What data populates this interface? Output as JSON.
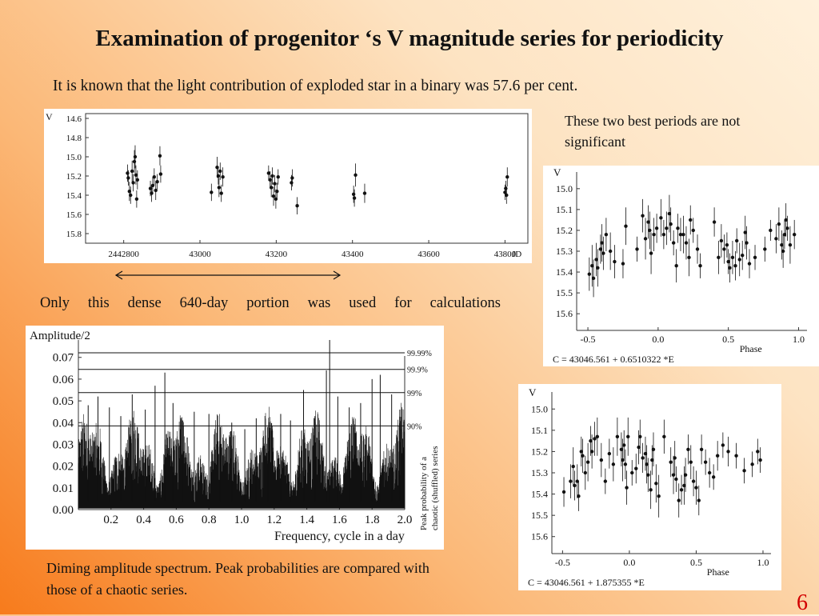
{
  "slide": {
    "title": "Examination of progenitor ‘s V magnitude series for periodicity",
    "subtitle": "It is known that the light contribution of exploded star in a binary was 57.6 per cent.",
    "note": "These two best periods are not significant",
    "dense_note": "Only this dense 640-day portion was used for calculations",
    "caption": "Diming amplitude spectrum. Peak probabilities are compared with those of a chaotic series.",
    "page_number": "6"
  },
  "chart_data": [
    {
      "id": "lightcurve",
      "type": "scatter",
      "title": "",
      "ylabel": "V",
      "xlabel": "JD",
      "xlim": [
        2442700,
        43860
      ],
      "ylim": [
        15.9,
        14.55
      ],
      "x_ticks": [
        2442800,
        43000,
        43200,
        43400,
        43600,
        43800
      ],
      "x_tick_labels": [
        "2442800",
        "43000",
        "43200",
        "43400",
        "43600",
        "43800"
      ],
      "y_ticks": [
        14.6,
        14.8,
        15.0,
        15.2,
        15.4,
        15.6,
        15.8
      ],
      "y_tick_labels": [
        "14.6",
        "14.8",
        "15.0",
        "15.2",
        "15.4",
        "15.6",
        "15.8"
      ],
      "points": [
        [
          2442810,
          15.17,
          0.09
        ],
        [
          2442812,
          15.22,
          0.08
        ],
        [
          2442815,
          15.36,
          0.1
        ],
        [
          2442818,
          15.4,
          0.09
        ],
        [
          2442822,
          15.15,
          0.11
        ],
        [
          2442825,
          15.27,
          0.09
        ],
        [
          2442828,
          15.05,
          0.12
        ],
        [
          2442830,
          15.0,
          0.12
        ],
        [
          2442832,
          15.19,
          0.1
        ],
        [
          2442834,
          15.44,
          0.09
        ],
        [
          2442836,
          15.24,
          0.1
        ],
        [
          2442870,
          15.33,
          0.08
        ],
        [
          2442873,
          15.38,
          0.09
        ],
        [
          2442876,
          15.3,
          0.09
        ],
        [
          2442880,
          15.21,
          0.09
        ],
        [
          2442884,
          15.35,
          0.1
        ],
        [
          2442888,
          15.26,
          0.08
        ],
        [
          2442895,
          14.99,
          0.1
        ],
        [
          2442897,
          15.18,
          0.09
        ],
        [
          43030,
          15.37,
          0.09
        ],
        [
          43045,
          15.11,
          0.11
        ],
        [
          43048,
          15.2,
          0.09
        ],
        [
          43050,
          15.32,
          0.1
        ],
        [
          43053,
          15.15,
          0.09
        ],
        [
          43056,
          15.38,
          0.09
        ],
        [
          43060,
          15.21,
          0.1
        ],
        [
          43180,
          15.17,
          0.08
        ],
        [
          43184,
          15.24,
          0.09
        ],
        [
          43187,
          15.32,
          0.1
        ],
        [
          43190,
          15.2,
          0.09
        ],
        [
          43193,
          15.41,
          0.1
        ],
        [
          43196,
          15.28,
          0.09
        ],
        [
          43199,
          15.44,
          0.1
        ],
        [
          43202,
          15.36,
          0.09
        ],
        [
          43205,
          15.21,
          0.08
        ],
        [
          43240,
          15.27,
          0.08
        ],
        [
          43242,
          15.22,
          0.09
        ],
        [
          43255,
          15.51,
          0.09
        ],
        [
          43403,
          15.39,
          0.09
        ],
        [
          43405,
          15.43,
          0.09
        ],
        [
          43408,
          15.19,
          0.12
        ],
        [
          43432,
          15.38,
          0.1
        ],
        [
          43800,
          15.37,
          0.08
        ],
        [
          43802,
          15.33,
          0.08
        ],
        [
          43804,
          15.4,
          0.09
        ],
        [
          43806,
          15.21,
          0.1
        ]
      ]
    },
    {
      "id": "fold1",
      "type": "scatter",
      "ylabel": "V",
      "xlabel": "Phase",
      "formula": "C = 43046.561 + 0.6510322 *E",
      "xlim": [
        -0.58,
        1.06
      ],
      "ylim": [
        15.68,
        14.92
      ],
      "x_ticks": [
        -0.5,
        0.0,
        0.5,
        1.0
      ],
      "x_tick_labels": [
        "-0.5",
        "0.0",
        "0.5",
        "1.0"
      ],
      "y_ticks": [
        15.0,
        15.1,
        15.2,
        15.3,
        15.4,
        15.5,
        15.6
      ],
      "y_tick_labels": [
        "15.0",
        "15.1",
        "15.2",
        "15.3",
        "15.4",
        "15.5",
        "15.6"
      ],
      "points": [
        [
          -0.49,
          15.41,
          0.08
        ],
        [
          -0.47,
          15.37,
          0.1
        ],
        [
          -0.46,
          15.43,
          0.09
        ],
        [
          -0.44,
          15.34,
          0.08
        ],
        [
          -0.43,
          15.38,
          0.09
        ],
        [
          -0.41,
          15.29,
          0.07
        ],
        [
          -0.4,
          15.26,
          0.09
        ],
        [
          -0.39,
          15.31,
          0.08
        ],
        [
          -0.37,
          15.22,
          0.08
        ],
        [
          -0.34,
          15.3,
          0.09
        ],
        [
          -0.31,
          15.35,
          0.08
        ],
        [
          -0.25,
          15.36,
          0.07
        ],
        [
          -0.23,
          15.18,
          0.09
        ],
        [
          -0.15,
          15.29,
          0.06
        ],
        [
          -0.11,
          15.13,
          0.08
        ],
        [
          -0.09,
          15.24,
          0.1
        ],
        [
          -0.07,
          15.16,
          0.08
        ],
        [
          -0.06,
          15.2,
          0.09
        ],
        [
          -0.05,
          15.31,
          0.1
        ],
        [
          -0.03,
          15.22,
          0.08
        ],
        [
          -0.01,
          15.19,
          0.07
        ],
        [
          0.02,
          15.14,
          0.09
        ],
        [
          0.04,
          15.22,
          0.07
        ],
        [
          0.06,
          15.19,
          0.08
        ],
        [
          0.08,
          15.12,
          0.09
        ],
        [
          0.09,
          15.17,
          0.08
        ],
        [
          0.11,
          15.26,
          0.06
        ],
        [
          0.13,
          15.37,
          0.08
        ],
        [
          0.14,
          15.19,
          0.07
        ],
        [
          0.16,
          15.22,
          0.08
        ],
        [
          0.18,
          15.22,
          0.09
        ],
        [
          0.2,
          15.26,
          0.08
        ],
        [
          0.22,
          15.33,
          0.09
        ],
        [
          0.23,
          15.15,
          0.07
        ],
        [
          0.25,
          15.2,
          0.06
        ],
        [
          0.28,
          15.29,
          0.07
        ],
        [
          0.3,
          15.37,
          0.06
        ],
        [
          0.4,
          15.16,
          0.07
        ],
        [
          0.43,
          15.33,
          0.08
        ],
        [
          0.45,
          15.25,
          0.08
        ],
        [
          0.47,
          15.29,
          0.07
        ],
        [
          0.49,
          15.27,
          0.06
        ],
        [
          0.5,
          15.35,
          0.06
        ],
        [
          0.51,
          15.38,
          0.07
        ],
        [
          0.53,
          15.33,
          0.08
        ],
        [
          0.55,
          15.37,
          0.07
        ],
        [
          0.56,
          15.25,
          0.06
        ],
        [
          0.58,
          15.34,
          0.08
        ],
        [
          0.6,
          15.32,
          0.07
        ],
        [
          0.62,
          15.21,
          0.08
        ],
        [
          0.63,
          15.26,
          0.08
        ],
        [
          0.65,
          15.36,
          0.07
        ],
        [
          0.69,
          15.33,
          0.06
        ],
        [
          0.76,
          15.29,
          0.06
        ],
        [
          0.8,
          15.2,
          0.05
        ],
        [
          0.84,
          15.24,
          0.07
        ],
        [
          0.86,
          15.17,
          0.08
        ],
        [
          0.88,
          15.27,
          0.07
        ],
        [
          0.89,
          15.3,
          0.08
        ],
        [
          0.9,
          15.22,
          0.07
        ],
        [
          0.91,
          15.15,
          0.08
        ],
        [
          0.92,
          15.19,
          0.06
        ],
        [
          0.94,
          15.27,
          0.09
        ],
        [
          0.97,
          15.22,
          0.07
        ]
      ]
    },
    {
      "id": "fold2",
      "type": "scatter",
      "ylabel": "V",
      "xlabel": "Phase",
      "formula": "C = 43046.561 + 1.875355 *E",
      "xlim": [
        -0.58,
        1.06
      ],
      "ylim": [
        15.68,
        14.92
      ],
      "x_ticks": [
        -0.5,
        0.0,
        0.5,
        1.0
      ],
      "x_tick_labels": [
        "-0.5",
        "0.0",
        "0.5",
        "1.0"
      ],
      "y_ticks": [
        15.0,
        15.1,
        15.2,
        15.3,
        15.4,
        15.5,
        15.6
      ],
      "y_tick_labels": [
        "15.0",
        "15.1",
        "15.2",
        "15.3",
        "15.4",
        "15.5",
        "15.6"
      ],
      "points": [
        [
          -0.49,
          15.39,
          0.07
        ],
        [
          -0.44,
          15.34,
          0.08
        ],
        [
          -0.42,
          15.27,
          0.09
        ],
        [
          -0.41,
          15.36,
          0.07
        ],
        [
          -0.39,
          15.34,
          0.08
        ],
        [
          -0.38,
          15.41,
          0.07
        ],
        [
          -0.36,
          15.2,
          0.07
        ],
        [
          -0.35,
          15.22,
          0.08
        ],
        [
          -0.33,
          15.3,
          0.08
        ],
        [
          -0.31,
          15.25,
          0.09
        ],
        [
          -0.29,
          15.15,
          0.07
        ],
        [
          -0.28,
          15.2,
          0.08
        ],
        [
          -0.26,
          15.14,
          0.08
        ],
        [
          -0.24,
          15.13,
          0.09
        ],
        [
          -0.21,
          15.24,
          0.08
        ],
        [
          -0.18,
          15.34,
          0.06
        ],
        [
          -0.15,
          15.21,
          0.07
        ],
        [
          -0.12,
          15.26,
          0.08
        ],
        [
          -0.09,
          15.13,
          0.09
        ],
        [
          -0.06,
          15.19,
          0.08
        ],
        [
          -0.05,
          15.24,
          0.1
        ],
        [
          -0.04,
          15.17,
          0.07
        ],
        [
          -0.03,
          15.26,
          0.07
        ],
        [
          -0.02,
          15.37,
          0.08
        ],
        [
          -0.01,
          15.13,
          0.09
        ],
        [
          0.02,
          15.3,
          0.06
        ],
        [
          0.05,
          15.28,
          0.07
        ],
        [
          0.07,
          15.18,
          0.08
        ],
        [
          0.08,
          15.13,
          0.08
        ],
        [
          0.1,
          15.23,
          0.07
        ],
        [
          0.12,
          15.21,
          0.08
        ],
        [
          0.13,
          15.26,
          0.09
        ],
        [
          0.14,
          15.31,
          0.08
        ],
        [
          0.16,
          15.38,
          0.09
        ],
        [
          0.17,
          15.24,
          0.07
        ],
        [
          0.18,
          15.19,
          0.08
        ],
        [
          0.2,
          15.35,
          0.09
        ],
        [
          0.22,
          15.41,
          0.1
        ],
        [
          0.26,
          15.13,
          0.08
        ],
        [
          0.31,
          15.25,
          0.07
        ],
        [
          0.33,
          15.31,
          0.09
        ],
        [
          0.34,
          15.23,
          0.08
        ],
        [
          0.35,
          15.33,
          0.06
        ],
        [
          0.37,
          15.43,
          0.08
        ],
        [
          0.39,
          15.38,
          0.07
        ],
        [
          0.41,
          15.36,
          0.09
        ],
        [
          0.42,
          15.31,
          0.08
        ],
        [
          0.44,
          15.19,
          0.07
        ],
        [
          0.46,
          15.25,
          0.08
        ],
        [
          0.48,
          15.34,
          0.07
        ],
        [
          0.5,
          15.37,
          0.08
        ],
        [
          0.52,
          15.43,
          0.07
        ],
        [
          0.54,
          15.19,
          0.07
        ],
        [
          0.57,
          15.25,
          0.06
        ],
        [
          0.6,
          15.3,
          0.07
        ],
        [
          0.63,
          15.32,
          0.06
        ],
        [
          0.66,
          15.22,
          0.07
        ],
        [
          0.7,
          15.17,
          0.06
        ],
        [
          0.74,
          15.2,
          0.07
        ],
        [
          0.8,
          15.22,
          0.06
        ],
        [
          0.86,
          15.29,
          0.06
        ],
        [
          0.92,
          15.26,
          0.06
        ],
        [
          0.96,
          15.2,
          0.06
        ],
        [
          0.98,
          15.24,
          0.06
        ]
      ]
    },
    {
      "id": "spectrum",
      "type": "line",
      "ylabel": "Amplitude/2",
      "xlabel": "Frequency, cycle in a day",
      "right_label_line1": "Peak probability of a",
      "right_label_line2": "chaotic (shuffled) series",
      "xlim": [
        0.0,
        2.0
      ],
      "ylim": [
        0.0,
        0.078
      ],
      "x_ticks": [
        0.2,
        0.4,
        0.6,
        0.8,
        1.0,
        1.2,
        1.4,
        1.6,
        1.8,
        2.0
      ],
      "x_tick_labels": [
        "0.2",
        "0.4",
        "0.6",
        "0.8",
        "1.0",
        "1.2",
        "1.4",
        "1.6",
        "1.8",
        "2.0"
      ],
      "y_ticks": [
        0.0,
        0.01,
        0.02,
        0.03,
        0.04,
        0.05,
        0.06,
        0.07
      ],
      "y_tick_labels": [
        "0.00",
        "0.01",
        "0.02",
        "0.03",
        "0.04",
        "0.05",
        "0.06",
        "0.07"
      ],
      "levels": [
        {
          "value": 0.0721,
          "label": "99.99%"
        },
        {
          "value": 0.0645,
          "label": "99.9%"
        },
        {
          "value": 0.0538,
          "label": "99%"
        },
        {
          "value": 0.0385,
          "label": "90%"
        }
      ],
      "peaks": [
        [
          0.06,
          0.048
        ],
        [
          0.12,
          0.052
        ],
        [
          0.19,
          0.047
        ],
        [
          0.26,
          0.043
        ],
        [
          0.33,
          0.053
        ],
        [
          0.41,
          0.046
        ],
        [
          0.47,
          0.057
        ],
        [
          0.53,
          0.063
        ],
        [
          0.58,
          0.049
        ],
        [
          0.64,
          0.041
        ],
        [
          0.71,
          0.045
        ],
        [
          0.8,
          0.044
        ],
        [
          0.87,
          0.038
        ],
        [
          0.94,
          0.04
        ],
        [
          1.02,
          0.037
        ],
        [
          1.09,
          0.042
        ],
        [
          1.16,
          0.038
        ],
        [
          1.24,
          0.044
        ],
        [
          1.3,
          0.041
        ],
        [
          1.38,
          0.055
        ],
        [
          1.45,
          0.043
        ],
        [
          1.52,
          0.064
        ],
        [
          1.54,
          0.078
        ],
        [
          1.59,
          0.052
        ],
        [
          1.66,
          0.047
        ],
        [
          1.73,
          0.049
        ],
        [
          1.8,
          0.06
        ],
        [
          1.85,
          0.062
        ],
        [
          1.92,
          0.053
        ],
        [
          1.97,
          0.046
        ]
      ]
    }
  ]
}
